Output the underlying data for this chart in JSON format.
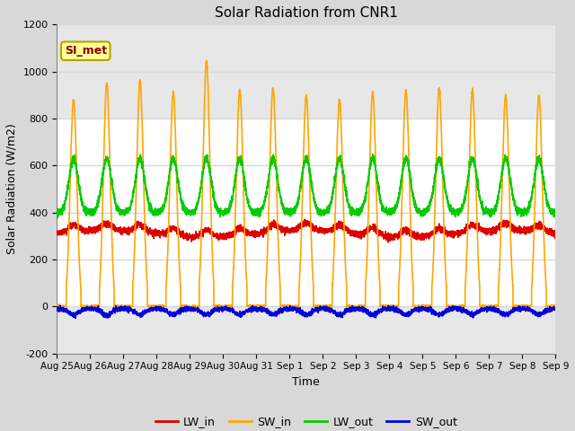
{
  "title": "Solar Radiation from CNR1",
  "xlabel": "Time",
  "ylabel": "Solar Radiation (W/m2)",
  "ylim": [
    -200,
    1200
  ],
  "yticks": [
    -200,
    0,
    200,
    400,
    600,
    800,
    1000,
    1200
  ],
  "x_labels": [
    "Aug 25",
    "Aug 26",
    "Aug 27",
    "Aug 28",
    "Aug 29",
    "Aug 30",
    "Aug 31",
    "Sep 1",
    "Sep 2",
    "Sep 3",
    "Sep 4",
    "Sep 5",
    "Sep 6",
    "Sep 7",
    "Sep 8",
    "Sep 9"
  ],
  "n_days": 15,
  "bg_color": "#d8d8d8",
  "plot_bg_color": "#ffffff",
  "grid_color": "#d8d8d8",
  "annotation_text": "SI_met",
  "annotation_bg": "#ffff99",
  "annotation_border": "#b8a000",
  "annotation_text_color": "#880000",
  "line_colors": {
    "LW_in": "#dd0000",
    "SW_in": "#ffa500",
    "LW_out": "#00cc00",
    "SW_out": "#0000dd"
  },
  "legend_labels": [
    "LW_in",
    "SW_in",
    "LW_out",
    "SW_out"
  ],
  "pts_per_day": 288,
  "SW_in_peaks": [
    880,
    950,
    960,
    910,
    1040,
    920,
    930,
    900,
    880,
    910,
    920,
    930,
    920,
    900,
    900
  ],
  "font_size": 9,
  "title_font_size": 11
}
